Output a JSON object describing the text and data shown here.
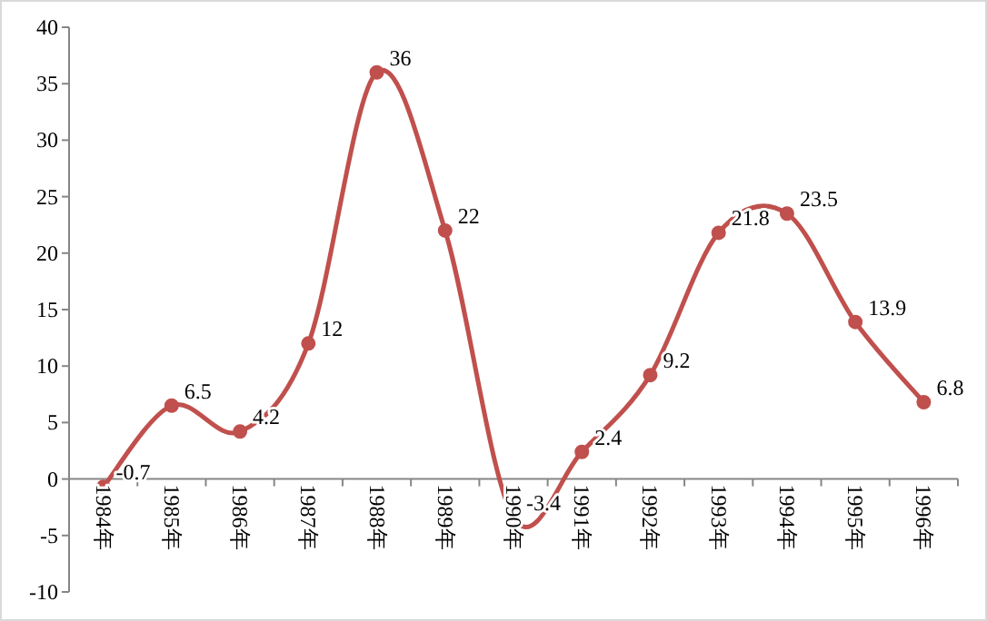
{
  "chart_data": {
    "type": "line",
    "categories": [
      "1984年",
      "1985年",
      "1986年",
      "1987年",
      "1988年",
      "1989年",
      "1990年",
      "1991年",
      "1992年",
      "1993年",
      "1994年",
      "1995年",
      "1996年"
    ],
    "series": [
      {
        "color": "#c0504d",
        "values": [
          -0.7,
          6.5,
          4.2,
          12,
          36,
          22,
          -3.4,
          2.4,
          9.2,
          21.8,
          23.5,
          13.9,
          6.8
        ]
      }
    ],
    "ylim": [
      -10,
      40
    ],
    "yticks": [
      -10,
      -5,
      0,
      5,
      10,
      15,
      20,
      25,
      30,
      35,
      40
    ],
    "marker": "circle",
    "data_labels": true
  }
}
